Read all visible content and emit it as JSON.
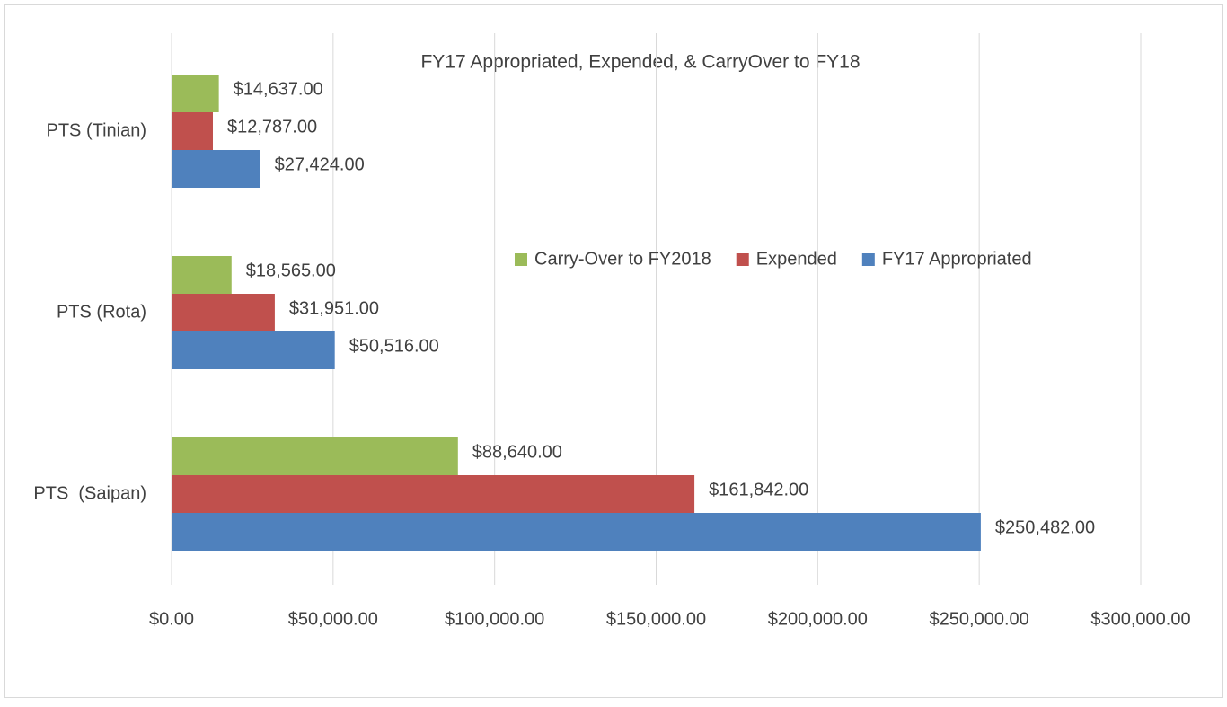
{
  "chart_data": {
    "type": "bar",
    "orientation": "horizontal",
    "title": "FY17 Appropriated, Expended, & CarryOver to FY18",
    "categories": [
      "PTS (Tinian)",
      "PTS (Rota)",
      "PTS  (Saipan)"
    ],
    "series": [
      {
        "name": "Carry-Over to FY2018",
        "color": "#9bbb59",
        "values": [
          14637,
          18565,
          88640
        ],
        "value_labels": [
          "$14,637.00",
          "$18,565.00",
          "$88,640.00"
        ]
      },
      {
        "name": "Expended",
        "color": "#c0504d",
        "values": [
          12787,
          31951,
          161842
        ],
        "value_labels": [
          "$12,787.00",
          "$31,951.00",
          "$161,842.00"
        ]
      },
      {
        "name": "FY17 Appropriated",
        "color": "#4f81bd",
        "values": [
          27424,
          50516,
          250482
        ],
        "value_labels": [
          "$27,424.00",
          "$50,516.00",
          "$250,482.00"
        ]
      }
    ],
    "xlim": [
      0,
      300000
    ],
    "xticks": [
      {
        "value": 0,
        "label": "$0.00"
      },
      {
        "value": 50000,
        "label": "$50,000.00"
      },
      {
        "value": 100000,
        "label": "$100,000.00"
      },
      {
        "value": 150000,
        "label": "$150,000.00"
      },
      {
        "value": 200000,
        "label": "$200,000.00"
      },
      {
        "value": 250000,
        "label": "$250,000.00"
      },
      {
        "value": 300000,
        "label": "$300,000.00"
      }
    ],
    "grid": true,
    "legend": "right"
  }
}
